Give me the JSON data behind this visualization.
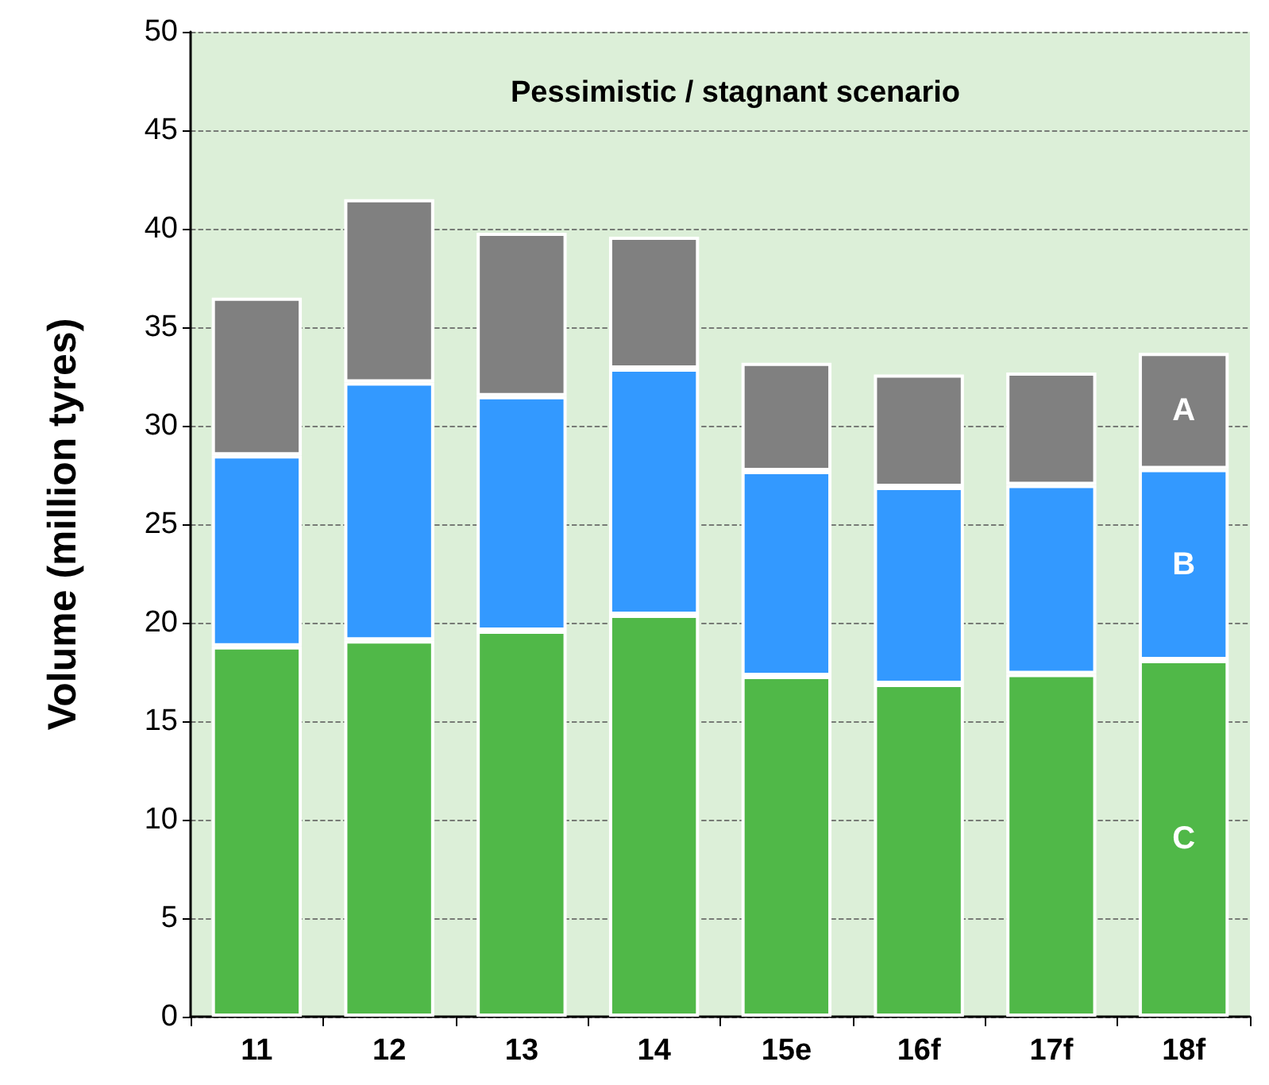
{
  "chart_data": {
    "type": "bar",
    "title": "Pessimistic / stagnant scenario",
    "ylabel": "Volume (million tyres)",
    "categories": [
      "11",
      "12",
      "13",
      "14",
      "15e",
      "16f",
      "17f",
      "18f"
    ],
    "stacked": true,
    "series": [
      {
        "name": "C",
        "color": "#50b848",
        "values": [
          18.8,
          19.1,
          19.6,
          20.4,
          17.3,
          16.9,
          17.4,
          18.1
        ]
      },
      {
        "name": "B",
        "color": "#3399ff",
        "values": [
          9.7,
          13.1,
          11.9,
          12.5,
          10.4,
          10.0,
          9.6,
          9.7
        ]
      },
      {
        "name": "A",
        "color": "#808080",
        "values": [
          8.0,
          9.3,
          8.3,
          6.7,
          5.5,
          5.7,
          5.7,
          5.9
        ]
      }
    ],
    "ylim": [
      0,
      50
    ],
    "yticks": [
      0,
      5,
      10,
      15,
      20,
      25,
      30,
      35,
      40,
      45,
      50
    ],
    "grid": "y"
  }
}
